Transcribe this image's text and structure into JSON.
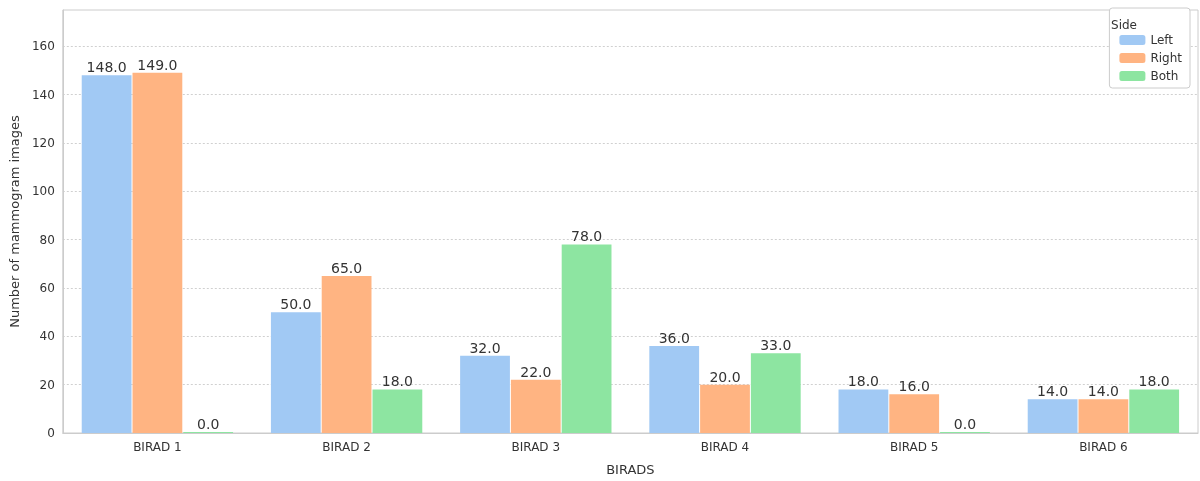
{
  "chart_data": {
    "type": "bar",
    "xlabel": "BIRADS",
    "ylabel": "Number of mammogram images",
    "legend_title": "Side",
    "categories": [
      "BIRAD 1",
      "BIRAD 2",
      "BIRAD 3",
      "BIRAD 4",
      "BIRAD 5",
      "BIRAD 6"
    ],
    "series": [
      {
        "name": "Left",
        "color": "#a1c9f4",
        "values": [
          148,
          50,
          32,
          36,
          18,
          14
        ],
        "value_labels": [
          "148.0",
          "50.0",
          "32.0",
          "36.0",
          "18.0",
          "14.0"
        ]
      },
      {
        "name": "Right",
        "color": "#ffb482",
        "values": [
          149,
          65,
          22,
          20,
          16,
          14
        ],
        "value_labels": [
          "149.0",
          "65.0",
          "22.0",
          "20.0",
          "16.0",
          "14.0"
        ]
      },
      {
        "name": "Both",
        "color": "#8de5a1",
        "values": [
          0,
          18,
          78,
          33,
          0,
          18
        ],
        "value_labels": [
          "0.0",
          "18.0",
          "78.0",
          "33.0",
          "0.0",
          "18.0"
        ]
      }
    ],
    "ylim": [
      0,
      175
    ],
    "yticks": [
      0,
      20,
      40,
      60,
      80,
      100,
      120,
      140,
      160
    ],
    "grid": "y",
    "legend": "top right"
  }
}
